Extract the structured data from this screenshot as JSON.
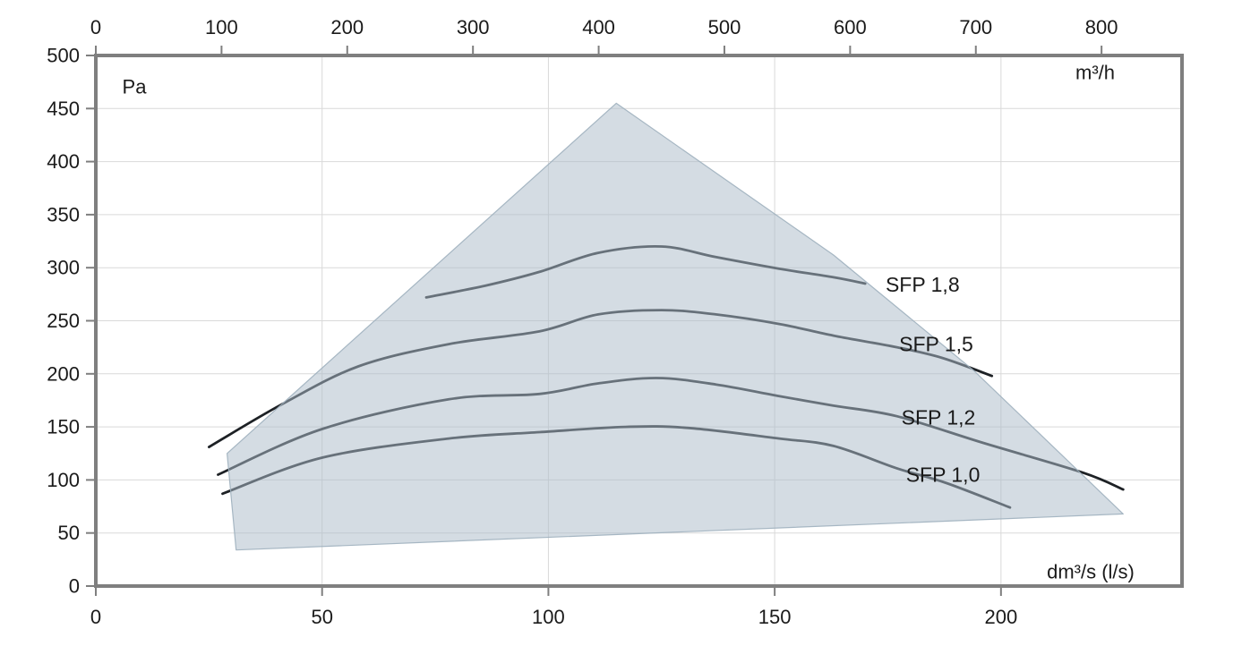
{
  "chart_data": {
    "type": "line",
    "title": "",
    "grid": true,
    "legend_position": "inline-labels",
    "y_axis": {
      "unit_label": "Pa",
      "min": 0,
      "max": 500,
      "ticks": [
        0,
        50,
        100,
        150,
        200,
        250,
        300,
        350,
        400,
        450,
        500
      ]
    },
    "x_axis_bottom": {
      "unit_label": "dm³/s (l/s)",
      "min": 0,
      "max": 240,
      "ticks": [
        0,
        50,
        100,
        150,
        200
      ]
    },
    "x_axis_top": {
      "unit_label": "m³/h",
      "factor_to_bottom_units": 3.6,
      "ticks": [
        0,
        100,
        200,
        300,
        400,
        500,
        600,
        700,
        800
      ]
    },
    "envelope": {
      "name": "operating-area",
      "points": [
        [
          29,
          125
        ],
        [
          115,
          455
        ],
        [
          163,
          312
        ],
        [
          194,
          203
        ],
        [
          227,
          68
        ],
        [
          31,
          34
        ]
      ]
    },
    "series": [
      {
        "name": "SFP 1,8",
        "x": [
          73,
          86,
          98,
          111,
          125,
          137,
          151,
          163,
          170
        ],
        "pa": [
          272,
          283,
          296,
          314,
          320,
          310,
          299,
          291,
          285
        ]
      },
      {
        "name": "SFP 1,5",
        "x": [
          25,
          41,
          58,
          78,
          98,
          111,
          125,
          137,
          151,
          163,
          177,
          187,
          198
        ],
        "pa": [
          131,
          171,
          207,
          228,
          240,
          256,
          260,
          256,
          247,
          236,
          225,
          215,
          198
        ]
      },
      {
        "name": "SFP 1,2",
        "x": [
          27,
          50,
          78,
          98,
          111,
          124,
          137,
          151,
          163,
          177,
          196,
          218,
          227
        ],
        "pa": [
          105,
          148,
          176,
          181,
          191,
          196,
          190,
          179,
          170,
          160,
          135,
          107,
          91
        ]
      },
      {
        "name": "SFP 1,0",
        "x": [
          28,
          50,
          78,
          98,
          117,
          131,
          151,
          163,
          177,
          188,
          202
        ],
        "pa": [
          87,
          121,
          139,
          145,
          150,
          149,
          139,
          132,
          111,
          97,
          74
        ]
      }
    ],
    "series_labels": [
      {
        "text": "SFP 1,8",
        "x": 174.5,
        "pa": 284
      },
      {
        "text": "SFP 1,5",
        "x": 177.5,
        "pa": 228
      },
      {
        "text": "SFP 1,2",
        "x": 178.0,
        "pa": 159
      },
      {
        "text": "SFP 1,0",
        "x": 179.0,
        "pa": 105
      }
    ]
  },
  "colors": {
    "background": "#ffffff",
    "frame": "#7f7f7f",
    "grid": "#d9d9d9",
    "tick": "#7f7f7f",
    "text": "#1a1a1a",
    "curve": "#1d2125",
    "envelope_fill": "rgba(173,188,201,0.52)",
    "envelope_stroke": "rgba(158,176,190,0.9)"
  }
}
